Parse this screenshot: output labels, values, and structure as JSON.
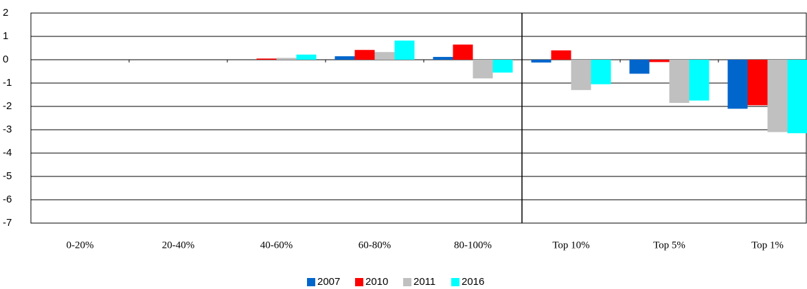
{
  "chart_data": {
    "type": "bar",
    "categories": [
      "0-20%",
      "20-40%",
      "40-60%",
      "60-80%",
      "80-100%",
      "Top 10%",
      "Top 5%",
      "Top 1%"
    ],
    "series": [
      {
        "name": "2007",
        "color": "#0066cc",
        "values": [
          0,
          0,
          0,
          0.15,
          0.12,
          -0.12,
          -0.6,
          -2.1
        ]
      },
      {
        "name": "2010",
        "color": "#ff0000",
        "values": [
          0,
          0,
          0.05,
          0.42,
          0.65,
          0.4,
          -0.1,
          -1.95
        ]
      },
      {
        "name": "2011",
        "color": "#c0c0c0",
        "values": [
          0,
          0,
          0.08,
          0.33,
          -0.8,
          -1.3,
          -1.85,
          -3.1
        ]
      },
      {
        "name": "2016",
        "color": "#00ffff",
        "values": [
          0,
          0,
          0.22,
          0.82,
          -0.55,
          -1.05,
          -1.75,
          -3.15
        ]
      }
    ],
    "ylim": [
      -7,
      2
    ],
    "yticks": [
      2,
      1,
      0,
      -1,
      -2,
      -3,
      -4,
      -5,
      -6,
      -7
    ],
    "grid": true,
    "legend": "bottom"
  }
}
